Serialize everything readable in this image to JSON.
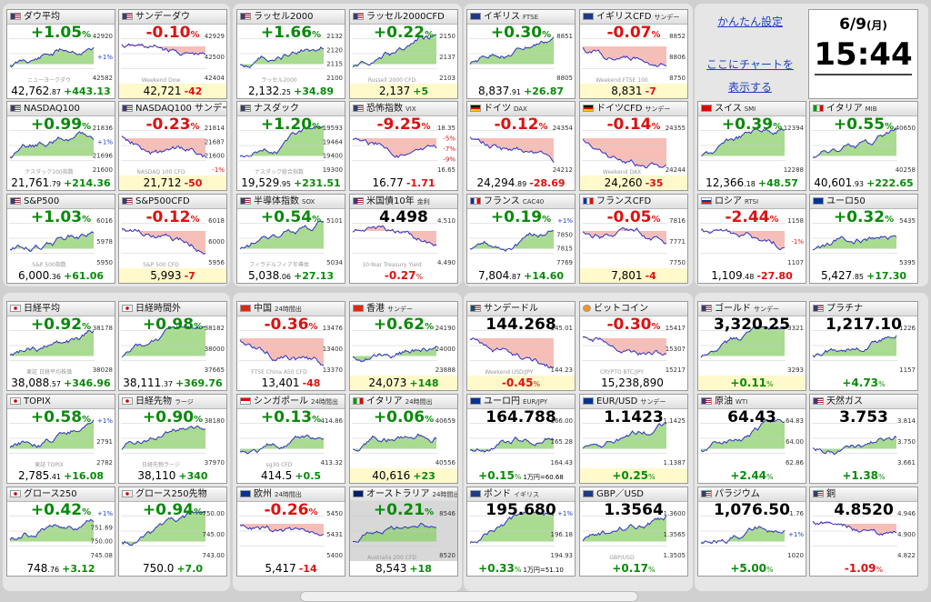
{
  "header": {
    "settings_link": "かんたん設定",
    "chart_link_line1": "ここにチャートを",
    "chart_link_line2": "表示する",
    "date_main": "6/9",
    "date_day": "(月)",
    "time": "15:44"
  },
  "colors": {
    "up": "#0a8a0a",
    "down": "#e01010",
    "area_up": "#8ccf6c",
    "area_down": "#f4a8a0",
    "line": "#3030c0"
  },
  "cards": [
    {
      "title": "ダウ平均",
      "flag": "us",
      "pct": "+1.05",
      "dir": "up",
      "ticks": [
        "42920",
        "+1%",
        "42582"
      ],
      "watermark": "ニューヨークダウ",
      "price_main": "42,762",
      "price_dec": ".87",
      "chg": "+443.13"
    },
    {
      "title": "サンデーダウ",
      "flag": "us",
      "pct": "-0.10",
      "dir": "dn",
      "ticks": [
        "42929",
        "42500",
        "42404"
      ],
      "watermark": "Weekend Dow",
      "price_main": "42,721",
      "price_dec": "",
      "chg": "-42",
      "yellow": true
    },
    {
      "title": "ナスダック100",
      "flag": "us",
      "pct": "+0.99",
      "dir": "up",
      "ticks": [
        "21836",
        "+1%",
        "21696",
        "21600"
      ],
      "watermark": "ナスダック100指数",
      "price_main": "21,761",
      "price_dec": ".79",
      "chg": "+214.36",
      "label": "NASDAQ100"
    },
    {
      "title": "NASDAQ100 サンデー",
      "flag": "us",
      "pct": "-0.23",
      "dir": "dn",
      "ticks": [
        "21814",
        "21687",
        "21600",
        "-1%"
      ],
      "watermark": "NASDAQ 100 CFD",
      "price_main": "21,712",
      "price_dec": "",
      "chg": "-50",
      "yellow": true
    },
    {
      "title": "S&P500",
      "flag": "us",
      "pct": "+1.03",
      "dir": "up",
      "ticks": [
        "6016",
        "5978",
        "5950"
      ],
      "watermark": "S&P 500指数",
      "price_main": "6,000",
      "price_dec": ".36",
      "chg": "+61.06"
    },
    {
      "title": "S&P500CFD",
      "flag": "us",
      "pct": "-0.12",
      "dir": "dn",
      "ticks": [
        "6018",
        "6000",
        "5956"
      ],
      "watermark": "S&P 500 CFD",
      "price_main": "5,993",
      "price_dec": "",
      "chg": "-7",
      "yellow": true
    },
    {
      "title": "ラッセル2000",
      "flag": "us",
      "pct": "+1.66",
      "dir": "up",
      "ticks": [
        "2132",
        "2120",
        "2115",
        "2100"
      ],
      "watermark": "ラッセル2000",
      "price_main": "2,132",
      "price_dec": ".25",
      "chg": "+34.89"
    },
    {
      "title": "ラッセル2000CFD",
      "flag": "us",
      "pct": "+0.22",
      "dir": "up",
      "ticks": [
        "2150",
        "2137",
        "2103"
      ],
      "watermark": "Russell 2000 CFD",
      "price_main": "2,137",
      "price_dec": "",
      "chg": "+5",
      "yellow": true
    },
    {
      "title": "ナスダック",
      "flag": "us",
      "pct": "+1.20",
      "dir": "up",
      "ticks": [
        "19593",
        "19464",
        "19400",
        "19300"
      ],
      "watermark": "ナスダック総合指数",
      "price_main": "19,529",
      "price_dec": ".95",
      "chg": "+231.51"
    },
    {
      "title": "恐怖指数",
      "sub": "VIX",
      "flag": "us",
      "pct": "-9.25",
      "dir": "dn",
      "ticks": [
        "18.35",
        "-5%",
        "-7%",
        "-9%",
        "16.65"
      ],
      "watermark": "",
      "price_main": "16.77",
      "price_dec": "",
      "chg": "-1.71"
    },
    {
      "title": "半導体指数",
      "sub": "SOX",
      "flag": "us",
      "pct": "+0.54",
      "dir": "up",
      "ticks": [
        "5101",
        "5034"
      ],
      "watermark": "フィラデルフィア半導体",
      "price_main": "5,038",
      "price_dec": ".06",
      "chg": "+27.13"
    },
    {
      "title": "米国債10年",
      "sub": "金利",
      "flag": "us",
      "big": "4.498",
      "pct": "-0.27",
      "dir": "dn",
      "ticks": [
        "4.510",
        "4.490"
      ],
      "watermark": "10-Year Treasury Yield",
      "pctbottom": true
    },
    {
      "title": "イギリス",
      "sub": "FTSE",
      "flag": "gb",
      "pct": "+0.30",
      "dir": "up",
      "ticks": [
        "8851",
        "8805"
      ],
      "watermark": "",
      "price_main": "8,837",
      "price_dec": ".91",
      "chg": "+26.87"
    },
    {
      "title": "イギリスCFD",
      "sub": "サンデー",
      "flag": "gb",
      "pct": "-0.07",
      "dir": "dn",
      "ticks": [
        "8852",
        "8806",
        "8750"
      ],
      "watermark": "Weekend FTSE 100",
      "price_main": "8,831",
      "price_dec": "",
      "chg": "-7",
      "yellow": true
    },
    {
      "title": "ドイツ",
      "sub": "DAX",
      "flag": "de",
      "pct": "-0.12",
      "dir": "dn",
      "ticks": [
        "24354",
        "24212"
      ],
      "watermark": "",
      "price_main": "24,294",
      "price_dec": ".89",
      "chg": "-28.69"
    },
    {
      "title": "ドイツCFD",
      "sub": "サンデー",
      "flag": "de",
      "pct": "-0.14",
      "dir": "dn",
      "ticks": [
        "24355",
        "24244"
      ],
      "watermark": "Weekend DAX",
      "price_main": "24,260",
      "price_dec": "",
      "chg": "-35",
      "yellow": true
    },
    {
      "title": "フランス",
      "sub": "CAC40",
      "flag": "fr",
      "pct": "+0.19",
      "dir": "up",
      "ticks": [
        "+1%",
        "7850",
        "7815",
        "7769"
      ],
      "watermark": "",
      "price_main": "7,804",
      "price_dec": ".87",
      "chg": "+14.60"
    },
    {
      "title": "フランスCFD",
      "flag": "fr",
      "pct": "-0.05",
      "dir": "dn",
      "ticks": [
        "7816",
        "7771",
        "7750"
      ],
      "watermark": "",
      "price_main": "7,801",
      "price_dec": "",
      "chg": "-4",
      "yellow": true
    },
    {
      "title": "スイス",
      "sub": "SMI",
      "flag": "ch",
      "pct": "+0.39",
      "dir": "up",
      "ticks": [
        "12394",
        "12288"
      ],
      "watermark": "",
      "price_main": "12,366",
      "price_dec": ".18",
      "chg": "+48.57"
    },
    {
      "title": "イタリア",
      "sub": "MIB",
      "flag": "it",
      "pct": "+0.55",
      "dir": "up",
      "ticks": [
        "40650",
        "40258"
      ],
      "watermark": "",
      "price_main": "40,601",
      "price_dec": ".93",
      "chg": "+222.65"
    },
    {
      "title": "ロシア",
      "sub": "RTSI",
      "flag": "ru",
      "pct": "-2.44",
      "dir": "dn",
      "ticks": [
        "1158",
        "-1%",
        "1107"
      ],
      "watermark": "",
      "price_main": "1,109",
      "price_dec": ".48",
      "chg": "-27.80"
    },
    {
      "title": "ユーロ50",
      "flag": "eu",
      "pct": "+0.32",
      "dir": "up",
      "ticks": [
        "5435",
        "5395"
      ],
      "watermark": "",
      "price_main": "5,427",
      "price_dec": ".85",
      "chg": "+17.30"
    },
    {
      "title": "日経平均",
      "flag": "jp",
      "pct": "+0.92",
      "dir": "up",
      "ticks": [
        "38178",
        "38028"
      ],
      "watermark": "東証 日経平均株価",
      "price_main": "38,088",
      "price_dec": ".57",
      "chg": "+346.96"
    },
    {
      "title": "日経時間外",
      "flag": "jp",
      "pct": "+0.98",
      "dir": "up",
      "ticks": [
        "38182",
        "38000",
        "37665"
      ],
      "watermark": "",
      "price_main": "38,111",
      "price_dec": ".37",
      "chg": "+369.76"
    },
    {
      "title": "TOPIX",
      "flag": "jp",
      "pct": "+0.58",
      "dir": "up",
      "ticks": [
        "+1%",
        "2791",
        "2782"
      ],
      "watermark": "東証 TOPIX",
      "price_main": "2,785",
      "price_dec": ".41",
      "chg": "+16.08"
    },
    {
      "title": "日経先物",
      "sub": "ラージ",
      "flag": "jp",
      "pct": "+0.90",
      "dir": "up",
      "ticks": [
        "38180",
        "37970"
      ],
      "watermark": "日経先物ラージ",
      "price_main": "38,110",
      "price_dec": "",
      "chg": "+340"
    },
    {
      "title": "グロース250",
      "flag": "jp",
      "pct": "+0.42",
      "dir": "up",
      "ticks": [
        "+1%",
        "751.69",
        "750.00",
        "745.08"
      ],
      "watermark": "",
      "price_main": "748",
      "price_dec": ".76",
      "chg": "+3.12"
    },
    {
      "title": "グロース250先物",
      "flag": "jp",
      "pct": "+0.94",
      "dir": "up",
      "ticks": [
        "750.00",
        "745.00",
        "743.00"
      ],
      "watermark": "",
      "price_main": "750.0",
      "price_dec": "",
      "chg": "+7.0"
    },
    {
      "title": "中国",
      "sub": "24時間出",
      "flag": "cn",
      "pct": "-0.36",
      "dir": "dn",
      "ticks": [
        "13476",
        "13400",
        "13370"
      ],
      "watermark": "FTSE China A50 CFD",
      "price_main": "13,401",
      "price_dec": "",
      "chg": "-48"
    },
    {
      "title": "香港",
      "sub": "サンデー",
      "flag": "hk",
      "pct": "+0.62",
      "dir": "up",
      "ticks": [
        "24190",
        "24000",
        "23888"
      ],
      "watermark": "",
      "price_main": "24,073",
      "price_dec": "",
      "chg": "+148",
      "yellow": true
    },
    {
      "title": "シンガポール",
      "sub": "24時間出",
      "flag": "sg",
      "pct": "+0.13",
      "dir": "up",
      "ticks": [
        "414.86",
        "413.32"
      ],
      "watermark": "sg30 CFD",
      "price_main": "414.5",
      "price_dec": "",
      "chg": "+0.5"
    },
    {
      "title": "イタリア",
      "sub": "24時間出",
      "flag": "it",
      "pct": "+0.06",
      "dir": "up",
      "ticks": [
        "40659",
        "40556"
      ],
      "watermark": "",
      "price_main": "40,616",
      "price_dec": "",
      "chg": "+23",
      "yellow": true
    },
    {
      "title": "欧州",
      "sub": "24時間出",
      "flag": "eu",
      "pct": "-0.26",
      "dir": "dn",
      "ticks": [
        "5450",
        "5431",
        "5400"
      ],
      "watermark": "",
      "price_main": "5,417",
      "price_dec": "",
      "chg": "-14"
    },
    {
      "title": "オーストラリア",
      "sub": "24時間出",
      "flag": "au",
      "pct": "+0.21",
      "dir": "up",
      "ticks": [
        "8546",
        "8520"
      ],
      "watermark": "Australia 200 CFD",
      "price_main": "8,543",
      "price_dec": "",
      "chg": "+18",
      "gray": true
    },
    {
      "title": "サンデードル",
      "flag": "us",
      "big": "144.268",
      "pct": "-0.45",
      "dir": "dn",
      "ticks": [
        "145.01",
        "144.23"
      ],
      "watermark": "Weekend USD/JPY",
      "pctbottom": true,
      "yellow": true
    },
    {
      "title": "ビットコイン",
      "flag": "btc",
      "pct": "-0.30",
      "dir": "dn",
      "ticks": [
        "15417",
        "15307",
        "15217"
      ],
      "watermark": "CRYPTO BTC/JPY",
      "price_main": "15,238,890",
      "price_dec": "",
      "chg": ""
    },
    {
      "title": "ユーロ円",
      "sub": "EUR/JPY",
      "flag": "eu",
      "big": "164.788",
      "pct": "+0.15",
      "dir": "up",
      "ticks": [
        "166.00",
        "165.28",
        "164.43"
      ],
      "watermark": "",
      "pctbottom": true,
      "extra": "1万円=60.68"
    },
    {
      "title": "EUR/USD",
      "sub": "サンデー",
      "flag": "eu",
      "big": "1.1423",
      "pct": "+0.25",
      "dir": "up",
      "ticks": [
        "1.1425",
        "1.1387"
      ],
      "watermark": "",
      "pctbottom": true,
      "yellow": true
    },
    {
      "title": "ポンド",
      "sub": "イギリス",
      "flag": "gb",
      "big": "195.680",
      "pct": "+0.33",
      "dir": "up",
      "ticks": [
        "+1%",
        "196.18",
        "194.93"
      ],
      "watermark": "",
      "pctbottom": true,
      "extra": "1万円=51.10"
    },
    {
      "title": "GBP／USD",
      "flag": "gb",
      "big": "1.3564",
      "pct": "+0.17",
      "dir": "up",
      "ticks": [
        "1.3600",
        "1.3565",
        "1.3505"
      ],
      "watermark": "GBP/USD",
      "pctbottom": true
    },
    {
      "title": "ゴールド",
      "sub": "サンデー",
      "flag": "us",
      "big": "3,320.25",
      "pct": "+0.11",
      "dir": "up",
      "ticks": [
        "3321",
        "3293"
      ],
      "watermark": "",
      "pctbottom": true,
      "yellow": true
    },
    {
      "title": "プラチナ",
      "flag": "us",
      "big": "1,217.10",
      "pct": "+4.73",
      "dir": "up",
      "ticks": [
        "1226",
        "1157"
      ],
      "watermark": "",
      "pctbottom": true
    },
    {
      "title": "原油",
      "sub": "WTI",
      "flag": "us",
      "big": "64.43",
      "pct": "+2.44",
      "dir": "up",
      "ticks": [
        "64.83",
        "64.00",
        "62.86"
      ],
      "watermark": "",
      "pctbottom": true
    },
    {
      "title": "天然ガス",
      "flag": "us",
      "big": "3.753",
      "pct": "+1.38",
      "dir": "up",
      "ticks": [
        "3.814",
        "3.750",
        "3.661"
      ],
      "watermark": "",
      "pctbottom": true
    },
    {
      "title": "パラジウム",
      "flag": "us",
      "big": "1,076.50",
      "pct": "+5.00",
      "dir": "up",
      "ticks": [
        "1.76",
        "+1%",
        "1020"
      ],
      "watermark": "",
      "pctbottom": true
    },
    {
      "title": "銅",
      "flag": "us",
      "big": "4.8520",
      "pct": "-1.09",
      "dir": "dn",
      "ticks": [
        "4.946",
        "4.900",
        "4.822"
      ],
      "watermark": "",
      "pctbottom": true
    }
  ]
}
